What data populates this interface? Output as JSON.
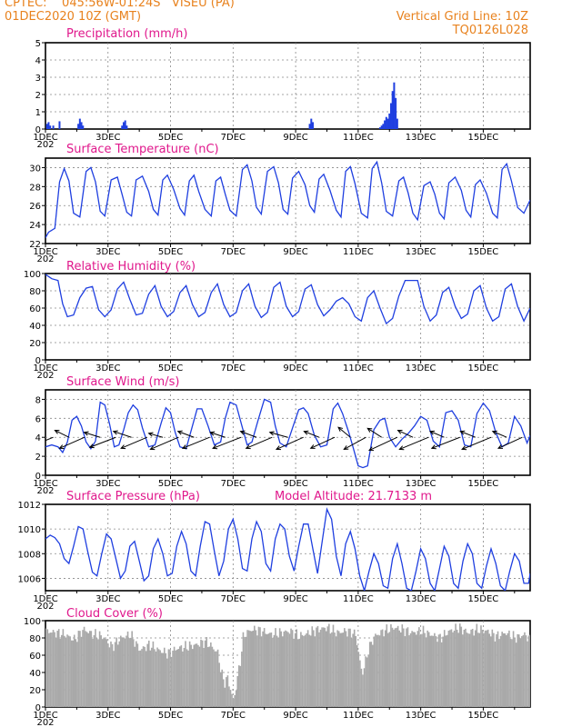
{
  "header": {
    "station_line": "CPTEC:    045:56W-01:24S   VISEU (PA)",
    "date_line": "01DEC2020 10Z (GMT)",
    "grid_note": "Vertical Grid Line: 10Z",
    "code": "TQ0126L028"
  },
  "x_axis": {
    "tick_labels": [
      "1DEC",
      "3DEC",
      "5DEC",
      "7DEC",
      "9DEC",
      "11DEC",
      "13DEC",
      "15DEC"
    ],
    "tick_days": [
      0,
      2,
      4,
      6,
      8,
      10,
      12,
      14
    ],
    "range_days": [
      0,
      15.5
    ],
    "clipped_year_label": "202"
  },
  "colors": {
    "series": "#1f3fe0",
    "cloud": "#a9a9a9",
    "title": "#e0188c",
    "header": "#e8821e"
  },
  "chart_data": [
    {
      "id": "precip",
      "type": "bar",
      "title": "Precipitation (mm/h)",
      "ylim": [
        0,
        5
      ],
      "yticks": [
        0,
        1,
        2,
        3,
        4,
        5
      ],
      "x_unit": "days since 01DEC2020 10Z",
      "x": [
        0.05,
        0.1,
        0.15,
        0.25,
        0.45,
        1.05,
        1.1,
        1.15,
        1.2,
        2.45,
        2.5,
        2.55,
        2.6,
        8.45,
        8.5,
        8.55,
        10.7,
        10.75,
        10.8,
        10.85,
        10.9,
        10.95,
        11.0,
        11.05,
        11.1,
        11.15,
        11.2,
        11.25
      ],
      "values": [
        0.3,
        0.4,
        0.2,
        0.2,
        0.45,
        0.3,
        0.6,
        0.4,
        0.2,
        0.2,
        0.4,
        0.5,
        0.2,
        0.3,
        0.6,
        0.4,
        0.1,
        0.2,
        0.3,
        0.5,
        0.7,
        0.6,
        0.9,
        1.5,
        2.2,
        2.7,
        1.8,
        0.6
      ]
    },
    {
      "id": "temp",
      "type": "line",
      "title": "Surface Temperature (nC)",
      "ylim": [
        22,
        31
      ],
      "yticks": [
        22,
        24,
        26,
        28,
        30
      ],
      "x_unit": "days since 01DEC2020 10Z",
      "x": [
        0,
        0.1,
        0.3,
        0.45,
        0.6,
        0.75,
        0.9,
        1.1,
        1.3,
        1.45,
        1.6,
        1.75,
        1.9,
        2.1,
        2.3,
        2.45,
        2.6,
        2.75,
        2.9,
        3.1,
        3.3,
        3.45,
        3.6,
        3.75,
        3.9,
        4.1,
        4.3,
        4.45,
        4.6,
        4.75,
        4.9,
        5.1,
        5.3,
        5.45,
        5.6,
        5.75,
        5.9,
        6.1,
        6.3,
        6.45,
        6.6,
        6.75,
        6.9,
        7.1,
        7.3,
        7.45,
        7.6,
        7.75,
        7.9,
        8.1,
        8.3,
        8.45,
        8.6,
        8.75,
        8.9,
        9.1,
        9.3,
        9.45,
        9.6,
        9.75,
        9.9,
        10.1,
        10.3,
        10.45,
        10.6,
        10.75,
        10.9,
        11.1,
        11.3,
        11.45,
        11.6,
        11.75,
        11.9,
        12.1,
        12.3,
        12.45,
        12.6,
        12.75,
        12.9,
        13.1,
        13.3,
        13.45,
        13.6,
        13.75,
        13.9,
        14.1,
        14.3,
        14.45,
        14.6,
        14.75,
        14.9,
        15.1,
        15.3,
        15.5
      ],
      "values": [
        22.6,
        23.2,
        23.6,
        28.5,
        29.9,
        28.6,
        25.2,
        24.8,
        29.6,
        30.0,
        28.5,
        25.4,
        24.9,
        28.7,
        29.0,
        27.2,
        25.3,
        24.9,
        28.7,
        29.1,
        27.5,
        25.6,
        25.0,
        28.7,
        29.2,
        27.7,
        25.7,
        25.0,
        28.6,
        29.2,
        27.5,
        25.6,
        24.9,
        28.6,
        29.0,
        27.2,
        25.5,
        24.9,
        29.8,
        30.3,
        28.6,
        25.8,
        25.1,
        29.6,
        30.1,
        28.4,
        25.6,
        25.1,
        28.9,
        29.6,
        28.2,
        26.0,
        25.3,
        28.8,
        29.3,
        27.6,
        25.5,
        24.8,
        29.6,
        30.1,
        28.3,
        25.2,
        24.7,
        29.9,
        30.6,
        28.4,
        25.4,
        24.9,
        28.6,
        29.0,
        27.3,
        25.2,
        24.5,
        28.1,
        28.5,
        27.2,
        25.2,
        24.6,
        28.4,
        29.0,
        27.6,
        25.5,
        24.8,
        28.2,
        28.7,
        27.3,
        25.2,
        24.7,
        29.8,
        30.4,
        28.6,
        25.8,
        25.2,
        26.6
      ]
    },
    {
      "id": "rh",
      "type": "line",
      "title": "Relative Humidity (%)",
      "ylim": [
        0,
        100
      ],
      "yticks": [
        0,
        20,
        40,
        60,
        80,
        100
      ],
      "x_unit": "days since 01DEC2020 10Z",
      "x": [
        0,
        0.2,
        0.4,
        0.55,
        0.7,
        0.9,
        1.1,
        1.3,
        1.5,
        1.7,
        1.9,
        2.1,
        2.3,
        2.5,
        2.7,
        2.9,
        3.1,
        3.3,
        3.5,
        3.7,
        3.9,
        4.1,
        4.3,
        4.5,
        4.7,
        4.9,
        5.1,
        5.3,
        5.5,
        5.7,
        5.9,
        6.1,
        6.3,
        6.5,
        6.7,
        6.9,
        7.1,
        7.3,
        7.5,
        7.7,
        7.9,
        8.1,
        8.3,
        8.5,
        8.7,
        8.9,
        9.1,
        9.3,
        9.5,
        9.7,
        9.9,
        10.1,
        10.3,
        10.5,
        10.7,
        10.9,
        11.1,
        11.3,
        11.5,
        11.7,
        11.9,
        12.1,
        12.3,
        12.5,
        12.7,
        12.9,
        13.1,
        13.3,
        13.5,
        13.7,
        13.9,
        14.1,
        14.3,
        14.5,
        14.7,
        14.9,
        15.1,
        15.3,
        15.5
      ],
      "values": [
        99,
        94,
        92,
        65,
        50,
        52,
        72,
        83,
        85,
        58,
        50,
        58,
        82,
        90,
        70,
        52,
        54,
        76,
        86,
        62,
        50,
        56,
        78,
        86,
        64,
        50,
        55,
        78,
        88,
        64,
        50,
        55,
        80,
        88,
        62,
        49,
        55,
        84,
        90,
        62,
        50,
        56,
        82,
        87,
        64,
        51,
        58,
        68,
        72,
        65,
        50,
        45,
        72,
        80,
        60,
        42,
        48,
        74,
        92,
        92,
        92,
        62,
        45,
        52,
        78,
        84,
        62,
        48,
        53,
        80,
        86,
        60,
        45,
        50,
        82,
        88,
        62,
        45,
        60
      ]
    },
    {
      "id": "wind",
      "type": "line",
      "title": "Surface Wind (m/s)",
      "ylim": [
        0,
        9
      ],
      "yticks": [
        0,
        2,
        4,
        6,
        8
      ],
      "x_unit": "days since 01DEC2020 10Z",
      "x": [
        0,
        0.2,
        0.4,
        0.55,
        0.7,
        0.85,
        1.0,
        1.15,
        1.3,
        1.45,
        1.6,
        1.75,
        1.9,
        2.05,
        2.2,
        2.35,
        2.5,
        2.65,
        2.8,
        2.95,
        3.1,
        3.3,
        3.5,
        3.7,
        3.85,
        4.0,
        4.15,
        4.3,
        4.5,
        4.7,
        4.85,
        5.0,
        5.2,
        5.4,
        5.6,
        5.75,
        5.9,
        6.1,
        6.3,
        6.45,
        6.6,
        6.8,
        7.0,
        7.2,
        7.35,
        7.5,
        7.7,
        7.9,
        8.1,
        8.25,
        8.4,
        8.6,
        8.8,
        9.0,
        9.2,
        9.35,
        9.5,
        9.7,
        9.85,
        10.0,
        10.15,
        10.3,
        10.5,
        10.7,
        10.85,
        11.0,
        11.2,
        11.4,
        11.6,
        11.8,
        12.0,
        12.2,
        12.4,
        12.6,
        12.8,
        13.0,
        13.2,
        13.4,
        13.6,
        13.8,
        14.0,
        14.2,
        14.4,
        14.6,
        14.8,
        15.0,
        15.2,
        15.4,
        15.5
      ],
      "values": [
        3,
        3.2,
        3.0,
        2.4,
        3.5,
        5.8,
        6.2,
        5.2,
        3.5,
        2.8,
        3.6,
        7.7,
        7.4,
        5.4,
        3.0,
        3.2,
        4.8,
        6.6,
        7.4,
        6.9,
        5.0,
        3.0,
        3.2,
        5.5,
        7.1,
        6.6,
        4.5,
        3.0,
        2.8,
        5.2,
        7.0,
        7.0,
        5.2,
        3.2,
        3.5,
        6.0,
        7.7,
        7.4,
        5.0,
        3.2,
        3.5,
        5.8,
        8.0,
        7.7,
        5.2,
        3.4,
        3.0,
        5.0,
        6.9,
        7.1,
        6.5,
        4.2,
        3.0,
        3.2,
        7.0,
        7.6,
        6.5,
        4.5,
        2.8,
        1.0,
        0.8,
        1.0,
        4.8,
        5.8,
        6.0,
        4.0,
        3.0,
        3.8,
        4.4,
        5.2,
        6.2,
        5.8,
        3.6,
        3.0,
        6.6,
        6.8,
        5.8,
        3.2,
        3.0,
        6.5,
        7.6,
        6.8,
        4.5,
        3.0,
        3.4,
        6.2,
        5.2,
        3.4,
        4.2
      ]
    },
    {
      "id": "wind_arrows",
      "type": "scatter",
      "x_unit": "days since 01DEC2020 10Z",
      "x": [
        0.25,
        0.75,
        1.25,
        1.75,
        2.25,
        2.75,
        3.25,
        3.75,
        4.25,
        4.75,
        5.25,
        5.75,
        6.25,
        6.75,
        7.25,
        7.75,
        8.25,
        8.75,
        9.25,
        9.75,
        10.25,
        10.75,
        11.25,
        11.75,
        12.25,
        12.75,
        13.25,
        13.75,
        14.25,
        14.75,
        15.25
      ],
      "u": [
        -1.5,
        -1.4,
        -2.5,
        -1.6,
        -2.6,
        -1.8,
        -2.6,
        -1.4,
        -2.8,
        -1.6,
        -2.7,
        -1.5,
        -2.8,
        -1.6,
        -2.6,
        -1.8,
        -2.7,
        -1.5,
        -2.4,
        -1.2,
        -2.2,
        -1.4,
        -2.8,
        -1.5,
        -2.9,
        -1.4,
        -2.8,
        -1.5,
        -2.9,
        -1.4,
        -2.4
      ],
      "v": [
        -0.6,
        0.7,
        -1.1,
        0.5,
        -1.0,
        0.6,
        -1.1,
        0.4,
        -1.2,
        0.6,
        -1.1,
        0.5,
        -1.1,
        0.6,
        -1.1,
        0.5,
        -1.2,
        0.6,
        -1.1,
        1.0,
        -1.2,
        0.9,
        -1.3,
        0.7,
        -1.2,
        0.6,
        -1.1,
        0.6,
        -1.2,
        0.6,
        -1.1
      ]
    },
    {
      "id": "pressure",
      "type": "line",
      "title": "Surface Pressure (hPa)",
      "annotation": "Model Altitude: 21.7133 m",
      "ylim": [
        1005,
        1012
      ],
      "yticks": [
        1006,
        1008,
        1010,
        1012
      ],
      "x_unit": "days since 01DEC2020 10Z",
      "x": [
        0,
        0.15,
        0.3,
        0.45,
        0.6,
        0.75,
        0.9,
        1.05,
        1.2,
        1.35,
        1.5,
        1.65,
        1.8,
        1.95,
        2.1,
        2.25,
        2.4,
        2.55,
        2.7,
        2.85,
        3.0,
        3.15,
        3.3,
        3.45,
        3.6,
        3.75,
        3.9,
        4.05,
        4.2,
        4.35,
        4.5,
        4.65,
        4.8,
        4.95,
        5.1,
        5.25,
        5.4,
        5.55,
        5.7,
        5.85,
        6.0,
        6.15,
        6.3,
        6.45,
        6.6,
        6.75,
        6.9,
        7.05,
        7.2,
        7.35,
        7.5,
        7.65,
        7.8,
        7.95,
        8.1,
        8.25,
        8.4,
        8.55,
        8.7,
        8.85,
        9.0,
        9.15,
        9.3,
        9.45,
        9.6,
        9.75,
        9.9,
        10.05,
        10.2,
        10.35,
        10.5,
        10.65,
        10.8,
        10.95,
        11.1,
        11.25,
        11.4,
        11.55,
        11.7,
        11.85,
        12.0,
        12.15,
        12.3,
        12.45,
        12.6,
        12.75,
        12.9,
        13.05,
        13.2,
        13.35,
        13.5,
        13.65,
        13.8,
        13.95,
        14.1,
        14.25,
        14.4,
        14.55,
        14.7,
        14.85,
        15.0,
        15.15,
        15.3,
        15.45,
        15.5
      ],
      "values": [
        1009.2,
        1009.5,
        1009.3,
        1008.8,
        1007.6,
        1007.2,
        1008.6,
        1010.2,
        1010.0,
        1008.2,
        1006.5,
        1006.2,
        1008.0,
        1009.6,
        1009.2,
        1007.6,
        1006.0,
        1006.6,
        1008.6,
        1009.0,
        1007.4,
        1005.8,
        1006.2,
        1008.4,
        1009.2,
        1008.0,
        1006.2,
        1006.4,
        1008.6,
        1009.8,
        1008.8,
        1006.6,
        1006.2,
        1008.6,
        1010.6,
        1010.4,
        1008.2,
        1006.2,
        1007.4,
        1010.0,
        1010.8,
        1009.2,
        1006.8,
        1006.6,
        1009.2,
        1010.6,
        1009.8,
        1007.2,
        1006.6,
        1009.2,
        1010.4,
        1010.0,
        1007.8,
        1006.6,
        1008.6,
        1010.4,
        1010.4,
        1008.4,
        1006.4,
        1009.0,
        1011.6,
        1010.8,
        1007.8,
        1006.2,
        1008.8,
        1009.8,
        1008.4,
        1006.2,
        1005.0,
        1006.6,
        1008.0,
        1007.2,
        1005.4,
        1005.2,
        1007.6,
        1008.8,
        1007.2,
        1005.2,
        1005.0,
        1006.6,
        1008.4,
        1007.6,
        1005.6,
        1005.0,
        1006.8,
        1008.6,
        1007.8,
        1005.6,
        1005.2,
        1007.4,
        1008.8,
        1008.0,
        1005.6,
        1005.2,
        1007.0,
        1008.4,
        1007.2,
        1005.4,
        1005.0,
        1006.6,
        1008.0,
        1007.4,
        1005.6,
        1005.6,
        1006.4
      ]
    },
    {
      "id": "cloud",
      "type": "area",
      "title": "Cloud Cover (%)",
      "ylim": [
        0,
        100
      ],
      "yticks": [
        0,
        20,
        40,
        60,
        80,
        100
      ],
      "x_unit": "days since 01DEC2020 10Z",
      "x": [
        0,
        0.3,
        0.6,
        0.9,
        1.2,
        1.5,
        1.8,
        2.1,
        2.4,
        2.7,
        3.0,
        3.3,
        3.6,
        3.9,
        4.2,
        4.5,
        4.8,
        5.1,
        5.3,
        5.5,
        5.6,
        5.7,
        5.8,
        5.9,
        6.0,
        6.1,
        6.2,
        6.3,
        6.4,
        6.6,
        6.9,
        7.2,
        7.5,
        7.8,
        8.1,
        8.4,
        8.7,
        9.0,
        9.3,
        9.6,
        9.9,
        10.1,
        10.2,
        10.3,
        10.5,
        10.8,
        11.1,
        11.4,
        11.7,
        12.0,
        12.3,
        12.6,
        12.9,
        13.2,
        13.5,
        13.8,
        14.1,
        14.4,
        14.7,
        15.0,
        15.3,
        15.5
      ],
      "values": [
        88,
        86,
        84,
        78,
        90,
        84,
        82,
        70,
        80,
        84,
        66,
        72,
        66,
        62,
        68,
        70,
        72,
        76,
        70,
        62,
        40,
        28,
        34,
        20,
        6,
        30,
        50,
        80,
        86,
        90,
        88,
        84,
        86,
        88,
        82,
        86,
        90,
        92,
        86,
        88,
        84,
        38,
        50,
        66,
        82,
        88,
        92,
        90,
        86,
        88,
        84,
        80,
        88,
        92,
        86,
        90,
        88,
        82,
        86,
        80,
        84,
        78
      ]
    }
  ]
}
